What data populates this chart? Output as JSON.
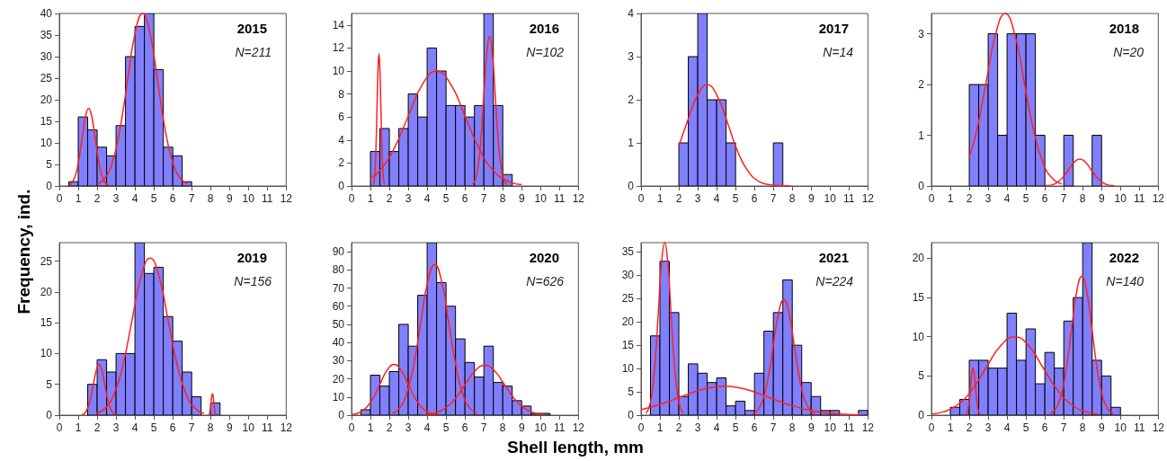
{
  "chart_data": [
    {
      "type": "histogram",
      "title": "2015",
      "annotations": [
        "N=211"
      ],
      "ylabel": "Frequency, ind.",
      "bins": [
        0,
        0.5,
        1,
        1.5,
        2,
        2.5,
        3,
        3.5,
        4,
        4.5,
        5,
        5.5,
        6,
        6.5,
        7,
        7.5,
        8,
        8.5,
        9,
        9.5,
        10,
        10.5,
        11,
        11.5,
        12
      ],
      "xlim": [
        0,
        12
      ],
      "xticks": [
        0,
        1,
        2,
        3,
        4,
        5,
        6,
        7,
        8,
        9,
        10,
        11,
        12
      ],
      "ylim": [
        0,
        40
      ],
      "yticks": [
        0,
        5,
        10,
        15,
        20,
        25,
        30,
        35,
        40
      ],
      "series": [
        {
          "type": "histogram",
          "color": "#8080ff",
          "values": [
            0,
            1,
            16,
            13,
            9,
            7,
            14,
            30,
            37,
            40,
            27,
            9,
            7,
            1,
            0,
            0,
            0,
            0,
            0,
            0,
            0,
            0,
            0,
            0
          ]
        },
        {
          "type": "line",
          "color": "#ff2020",
          "x": [
            0.5,
            0.675,
            0.85,
            1.025,
            1.2,
            1.375,
            1.55,
            1.725,
            1.9,
            2.075,
            2.25,
            2.425,
            2.6
          ],
          "values": [
            0.2,
            0.79,
            2.44,
            5.84,
            10.92,
            15.89,
            18,
            15.89,
            10.92,
            5.84,
            2.44,
            0.79,
            0.2
          ]
        },
        {
          "type": "line",
          "color": "#ff2020",
          "x": [
            2.0,
            2.4,
            2.8,
            3.2,
            3.6,
            4.0,
            4.4,
            4.8,
            5.2,
            5.6,
            6.0,
            6.4,
            6.8
          ],
          "values": [
            0.44,
            1.76,
            5.41,
            12.99,
            24.26,
            35.3,
            40,
            35.3,
            24.26,
            12.99,
            5.41,
            1.76,
            0.44
          ]
        }
      ]
    },
    {
      "type": "histogram",
      "title": "2016",
      "annotations": [
        "N=102"
      ],
      "bins": [
        0,
        0.5,
        1,
        1.5,
        2,
        2.5,
        3,
        3.5,
        4,
        4.5,
        5,
        5.5,
        6,
        6.5,
        7,
        7.5,
        8,
        8.5,
        9,
        9.5,
        10,
        10.5,
        11,
        11.5,
        12
      ],
      "xlim": [
        0,
        12
      ],
      "xticks": [
        0,
        1,
        2,
        3,
        4,
        5,
        6,
        7,
        8,
        9,
        10,
        11,
        12
      ],
      "ylim": [
        0,
        15
      ],
      "yticks": [
        0,
        2,
        4,
        6,
        8,
        10,
        12,
        14
      ],
      "series": [
        {
          "type": "histogram",
          "color": "#8080ff",
          "values": [
            0,
            0,
            3,
            5,
            3,
            5,
            8,
            6,
            12,
            10,
            7,
            7,
            6,
            7,
            15,
            7,
            1,
            0,
            0,
            0,
            0,
            0,
            0,
            0
          ]
        },
        {
          "type": "line",
          "color": "#ff2020",
          "x": [
            1.15,
            1.2,
            1.25,
            1.3,
            1.35,
            1.4,
            1.45,
            1.5,
            1.55,
            1.6,
            1.65,
            1.7,
            1.75
          ],
          "values": [
            0.13,
            0.5,
            1.56,
            3.73,
            6.97,
            10.15,
            11.5,
            10.15,
            6.97,
            3.73,
            1.56,
            0.5,
            0.13
          ]
        },
        {
          "type": "line",
          "color": "#ff2020",
          "x": [
            1.0,
            1.5,
            2.25,
            3,
            3.75,
            4.5,
            5.25,
            6,
            6.75,
            7.5,
            8.25,
            9
          ],
          "values": [
            0.66,
            1.35,
            3.25,
            6.07,
            8.83,
            10,
            8.83,
            6.07,
            3.25,
            1.35,
            0.44,
            0.11
          ]
        },
        {
          "type": "line",
          "color": "#ff2020",
          "x": [
            6.4,
            6.55,
            6.7,
            6.85,
            7.0,
            7.15,
            7.3,
            7.45,
            7.6,
            7.75,
            7.9,
            8.05,
            8.2
          ],
          "values": [
            0.14,
            0.57,
            1.76,
            4.22,
            7.88,
            11.47,
            13,
            11.47,
            7.88,
            4.22,
            1.76,
            0.57,
            0.14
          ]
        }
      ]
    },
    {
      "type": "histogram",
      "title": "2017",
      "annotations": [
        "N=14"
      ],
      "bins": [
        0,
        0.5,
        1,
        1.5,
        2,
        2.5,
        3,
        3.5,
        4,
        4.5,
        5,
        5.5,
        6,
        6.5,
        7,
        7.5,
        8,
        8.5,
        9,
        9.5,
        10,
        10.5,
        11,
        11.5,
        12
      ],
      "xlim": [
        0,
        12
      ],
      "xticks": [
        0,
        1,
        2,
        3,
        4,
        5,
        6,
        7,
        8,
        9,
        10,
        11,
        12
      ],
      "ylim": [
        0,
        4
      ],
      "yticks": [
        0,
        1,
        2,
        3,
        4
      ],
      "series": [
        {
          "type": "histogram",
          "color": "#8080ff",
          "values": [
            0,
            0,
            0,
            0,
            1,
            3,
            4,
            2,
            2,
            1,
            0,
            0,
            0,
            0,
            1,
            0,
            0,
            0,
            0,
            0,
            0,
            0,
            0,
            0
          ]
        },
        {
          "type": "line",
          "color": "#ff2020",
          "x": [
            2,
            2.4,
            2.95,
            3.5,
            4.05,
            4.6,
            5.15,
            5.7,
            6.25,
            6.8,
            7.35,
            7.9
          ],
          "values": [
            0.93,
            1.43,
            2.07,
            2.35,
            2.07,
            1.43,
            0.76,
            0.32,
            0.1,
            0.03,
            0.01,
            0
          ]
        }
      ]
    },
    {
      "type": "histogram",
      "title": "2018",
      "annotations": [
        "N=20"
      ],
      "bins": [
        0,
        0.5,
        1,
        1.5,
        2,
        2.5,
        3,
        3.5,
        4,
        4.5,
        5,
        5.5,
        6,
        6.5,
        7,
        7.5,
        8,
        8.5,
        9,
        9.5,
        10,
        10.5,
        11,
        11.5,
        12
      ],
      "xlim": [
        0,
        12
      ],
      "xticks": [
        0,
        1,
        2,
        3,
        4,
        5,
        6,
        7,
        8,
        9,
        10,
        11,
        12
      ],
      "ylim": [
        0,
        3.4
      ],
      "yticks": [
        0,
        1,
        2,
        3
      ],
      "series": [
        {
          "type": "histogram",
          "color": "#8080ff",
          "values": [
            0,
            0,
            0,
            0,
            2,
            2,
            3,
            1,
            3,
            3,
            3,
            1,
            0,
            0,
            1,
            0,
            0,
            1,
            0,
            0,
            0,
            0,
            0,
            0
          ]
        },
        {
          "type": "line",
          "color": "#ff2020",
          "x": [
            2,
            2.4,
            2.9,
            3.4,
            3.9,
            4.4,
            4.9,
            5.4,
            5.9,
            6.4,
            6.9
          ],
          "values": [
            0.56,
            1.1,
            2.06,
            3.0,
            3.4,
            3.0,
            2.06,
            1.1,
            0.46,
            0.15,
            0.04
          ]
        },
        {
          "type": "line",
          "color": "#ff2020",
          "x": [
            6.05,
            6.35,
            6.65,
            6.95,
            7.25,
            7.55,
            7.85,
            8.15,
            8.45,
            8.75,
            9.05,
            9.35,
            9.65
          ],
          "values": [
            0.01,
            0.02,
            0.07,
            0.17,
            0.32,
            0.47,
            0.53,
            0.47,
            0.32,
            0.17,
            0.07,
            0.02,
            0.01
          ]
        }
      ]
    },
    {
      "type": "histogram",
      "title": "2019",
      "annotations": [
        "N=156"
      ],
      "bins": [
        0,
        0.5,
        1,
        1.5,
        2,
        2.5,
        3,
        3.5,
        4,
        4.5,
        5,
        5.5,
        6,
        6.5,
        7,
        7.5,
        8,
        8.5,
        9,
        9.5,
        10,
        10.5,
        11,
        11.5,
        12
      ],
      "xlim": [
        0,
        12
      ],
      "xticks": [
        0,
        1,
        2,
        3,
        4,
        5,
        6,
        7,
        8,
        9,
        10,
        11,
        12
      ],
      "ylim": [
        0,
        28
      ],
      "yticks": [
        0,
        5,
        10,
        15,
        20,
        25
      ],
      "series": [
        {
          "type": "histogram",
          "color": "#8080ff",
          "values": [
            0,
            0,
            0,
            5,
            9,
            7,
            10,
            10,
            28,
            23,
            24,
            16,
            12,
            7,
            3,
            0,
            2,
            0,
            0,
            0,
            0,
            0,
            0,
            0
          ]
        },
        {
          "type": "line",
          "color": "#ff2020",
          "x": [
            1.2,
            1.35,
            1.5,
            1.65,
            1.8,
            1.95,
            2.1,
            2.25,
            2.4,
            2.55,
            2.7,
            2.85,
            3.0
          ],
          "values": [
            0.09,
            0.36,
            1.11,
            2.66,
            4.97,
            7.24,
            8.2,
            7.24,
            4.97,
            2.66,
            1.11,
            0.36,
            0.09
          ]
        },
        {
          "type": "line",
          "color": "#ff2020",
          "x": [
            1.95,
            2.425,
            2.9,
            3.375,
            3.85,
            4.325,
            4.8,
            5.275,
            5.75,
            6.225,
            6.7,
            7.175,
            7.65
          ],
          "values": [
            0.28,
            1.12,
            3.45,
            8.28,
            15.47,
            22.5,
            25.5,
            22.5,
            15.47,
            8.28,
            3.45,
            1.12,
            0.28
          ]
        },
        {
          "type": "line",
          "color": "#ff2020",
          "x": [
            7.89,
            7.925,
            7.96,
            7.995,
            8.03,
            8.065,
            8.1,
            8.135,
            8.17,
            8.205,
            8.24,
            8.275,
            8.31
          ],
          "values": [
            0.04,
            0.15,
            0.47,
            1.14,
            2.12,
            3.09,
            3.5,
            3.09,
            2.12,
            1.14,
            0.47,
            0.15,
            0.04
          ]
        }
      ]
    },
    {
      "type": "histogram",
      "title": "2020",
      "annotations": [
        "N=626"
      ],
      "xlabel": "Shell length, mm",
      "bins": [
        0,
        0.5,
        1,
        1.5,
        2,
        2.5,
        3,
        3.5,
        4,
        4.5,
        5,
        5.5,
        6,
        6.5,
        7,
        7.5,
        8,
        8.5,
        9,
        9.5,
        10,
        10.5,
        11,
        11.5,
        12
      ],
      "xlim": [
        0,
        12
      ],
      "xticks": [
        0,
        1,
        2,
        3,
        4,
        5,
        6,
        7,
        8,
        9,
        10,
        11,
        12
      ],
      "ylim": [
        0,
        95
      ],
      "yticks": [
        0,
        10,
        20,
        30,
        40,
        50,
        60,
        70,
        80,
        90
      ],
      "series": [
        {
          "type": "histogram",
          "color": "#8080ff",
          "values": [
            0,
            3,
            22,
            16,
            24,
            50,
            38,
            66,
            95,
            73,
            60,
            42,
            29,
            21,
            38,
            18,
            16,
            8,
            5,
            1,
            1,
            0,
            0,
            0
          ]
        },
        {
          "type": "line",
          "color": "#ff2020",
          "x": [
            0,
            0.375,
            0.75,
            1.125,
            1.5,
            1.875,
            2.25,
            2.625,
            3.0,
            3.375,
            3.75,
            4.125,
            4.5
          ],
          "values": [
            0.31,
            1.23,
            3.79,
            9.09,
            16.98,
            24.71,
            28,
            24.71,
            16.98,
            9.09,
            3.79,
            1.23,
            0.31
          ]
        },
        {
          "type": "line",
          "color": "#ff2020",
          "x": [
            2.15,
            2.525,
            2.9,
            3.275,
            3.65,
            4.025,
            4.4,
            4.775,
            5.15,
            5.525,
            5.9,
            6.275,
            6.65
          ],
          "values": [
            0.92,
            3.64,
            11.23,
            26.95,
            50.34,
            73.25,
            83,
            73.25,
            50.34,
            26.95,
            11.23,
            3.64,
            0.92
          ]
        },
        {
          "type": "line",
          "color": "#ff2020",
          "x": [
            3.9,
            4.425,
            4.95,
            5.475,
            6.0,
            6.525,
            7.05,
            7.575,
            8.1,
            8.625,
            9.15,
            9.675,
            10.2
          ],
          "values": [
            0.31,
            1.21,
            3.72,
            8.93,
            16.68,
            24.27,
            27.5,
            24.27,
            16.68,
            8.93,
            3.72,
            1.21,
            0.31
          ]
        }
      ]
    },
    {
      "type": "histogram",
      "title": "2021",
      "annotations": [
        "N=224"
      ],
      "bins": [
        0,
        0.5,
        1,
        1.5,
        2,
        2.5,
        3,
        3.5,
        4,
        4.5,
        5,
        5.5,
        6,
        6.5,
        7,
        7.5,
        8,
        8.5,
        9,
        9.5,
        10,
        10.5,
        11,
        11.5,
        12
      ],
      "xlim": [
        0,
        12
      ],
      "xticks": [
        0,
        1,
        2,
        3,
        4,
        5,
        6,
        7,
        8,
        9,
        10,
        11,
        12
      ],
      "ylim": [
        0,
        37
      ],
      "yticks": [
        0,
        5,
        10,
        15,
        20,
        25,
        30,
        35
      ],
      "series": [
        {
          "type": "histogram",
          "color": "#8080ff",
          "values": [
            0,
            17,
            33,
            22,
            4,
            11,
            9,
            7,
            8,
            2,
            3,
            1,
            9,
            18,
            22,
            29,
            15,
            7,
            4,
            1,
            1,
            0,
            0,
            1
          ]
        },
        {
          "type": "line",
          "color": "#ff2020",
          "x": [
            0.26,
            0.425,
            0.59,
            0.755,
            0.92,
            1.085,
            1.25,
            1.415,
            1.58,
            1.745,
            1.91,
            2.075,
            2.24
          ],
          "values": [
            0.41,
            1.62,
            5.0,
            12.01,
            22.44,
            32.65,
            37,
            32.65,
            22.44,
            12.01,
            5.0,
            1.62,
            0.41
          ]
        },
        {
          "type": "line",
          "color": "#ff2020",
          "x": [
            0,
            1.2,
            2.0,
            2.8,
            3.6,
            4.4,
            5.2,
            6.0,
            6.8,
            8.0,
            9.2,
            10.4,
            11.6
          ],
          "values": [
            1.16,
            2.55,
            3.76,
            4.97,
            5.86,
            6.2,
            5.86,
            4.97,
            3.76,
            2.01,
            0.84,
            0.27,
            0.07
          ]
        },
        {
          "type": "line",
          "color": "#ff2020",
          "x": [
            5.9,
            6.175,
            6.45,
            6.725,
            7.0,
            7.275,
            7.55,
            7.825,
            8.1,
            8.375,
            8.65,
            8.925,
            9.2
          ],
          "values": [
            0.28,
            1.09,
            3.35,
            8.05,
            15.04,
            21.89,
            24.8,
            21.89,
            15.04,
            8.05,
            3.35,
            1.09,
            0.28
          ]
        }
      ]
    },
    {
      "type": "histogram",
      "title": "2022",
      "annotations": [
        "N=140"
      ],
      "bins": [
        0,
        0.5,
        1,
        1.5,
        2,
        2.5,
        3,
        3.5,
        4,
        4.5,
        5,
        5.5,
        6,
        6.5,
        7,
        7.5,
        8,
        8.5,
        9,
        9.5,
        10,
        10.5,
        11,
        11.5,
        12
      ],
      "xlim": [
        0,
        12
      ],
      "xticks": [
        0,
        1,
        2,
        3,
        4,
        5,
        6,
        7,
        8,
        9,
        10,
        11,
        12
      ],
      "ylim": [
        0,
        22
      ],
      "yticks": [
        0,
        5,
        10,
        15,
        20
      ],
      "series": [
        {
          "type": "histogram",
          "color": "#8080ff",
          "values": [
            0,
            0,
            1,
            2,
            7,
            7,
            6,
            6,
            13,
            7,
            11,
            4,
            8,
            6,
            12,
            15,
            22,
            7,
            5,
            1,
            0,
            0,
            0,
            0
          ]
        },
        {
          "type": "line",
          "color": "#ff2020",
          "x": [
            1.81,
            1.875,
            1.94,
            2.005,
            2.07,
            2.135,
            2.2,
            2.265,
            2.33,
            2.395,
            2.46,
            2.525,
            2.59
          ],
          "values": [
            0.07,
            0.26,
            0.81,
            1.95,
            3.64,
            5.3,
            6,
            5.3,
            3.64,
            1.95,
            0.81,
            0.26,
            0.07
          ]
        },
        {
          "type": "line",
          "color": "#ff2020",
          "x": [
            0,
            0.65,
            1.4,
            2.15,
            2.9,
            3.65,
            4.4,
            5.15,
            5.9,
            6.65,
            7.4,
            8.15,
            8.8
          ],
          "values": [
            0.14,
            0.44,
            1.35,
            3.25,
            6.07,
            8.83,
            10,
            8.83,
            6.07,
            3.25,
            1.35,
            0.44,
            0.14
          ]
        },
        {
          "type": "line",
          "color": "#ff2020",
          "x": [
            6.3,
            6.575,
            6.85,
            7.125,
            7.4,
            7.675,
            7.95,
            8.225,
            8.5,
            8.775,
            9.05,
            9.325,
            9.6
          ],
          "values": [
            0.2,
            0.78,
            2.4,
            5.75,
            10.73,
            15.62,
            17.7,
            15.62,
            10.73,
            5.75,
            2.4,
            0.78,
            0.2
          ]
        }
      ]
    }
  ]
}
